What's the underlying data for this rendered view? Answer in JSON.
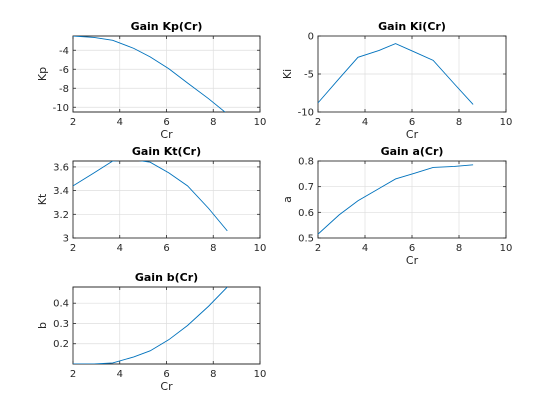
{
  "chart_data": [
    {
      "type": "line",
      "title": "Gain Kp(Cr)",
      "xlabel": "Cr",
      "ylabel": "Kp",
      "xlim": [
        2,
        10
      ],
      "ylim": [
        -10.5,
        -2.5
      ],
      "xticks": [
        2,
        4,
        6,
        8,
        10
      ],
      "yticks": [
        -10,
        -8,
        -6,
        -4
      ],
      "grid": true,
      "color": "#0072bd",
      "series": [
        {
          "x": [
            2,
            2.9,
            3.7,
            4.6,
            5.3,
            6.1,
            6.9,
            7.8,
            8.6
          ],
          "y": [
            -2.5,
            -2.65,
            -2.95,
            -3.8,
            -4.7,
            -5.95,
            -7.45,
            -9.1,
            -10.7
          ]
        }
      ]
    },
    {
      "type": "line",
      "title": "Gain Ki(Cr)",
      "xlabel": "Cr",
      "ylabel": "Ki",
      "xlim": [
        2,
        10
      ],
      "ylim": [
        -10,
        0
      ],
      "xticks": [
        2,
        4,
        6,
        8,
        10
      ],
      "yticks": [
        -10,
        -5,
        0
      ],
      "grid": true,
      "color": "#0072bd",
      "series": [
        {
          "x": [
            2,
            2.9,
            3.7,
            4.6,
            5.3,
            6.1,
            6.9,
            7.8,
            8.6
          ],
          "y": [
            -8.8,
            -5.6,
            -2.8,
            -1.9,
            -1.0,
            -2.1,
            -3.2,
            -6.3,
            -9.0
          ]
        }
      ]
    },
    {
      "type": "line",
      "title": "Gain Kt(Cr)",
      "xlabel": "",
      "ylabel": "Kt",
      "xlim": [
        2,
        10
      ],
      "ylim": [
        3,
        3.65
      ],
      "xticks": [
        2,
        4,
        6,
        8,
        10
      ],
      "yticks": [
        3,
        3.2,
        3.4,
        3.6
      ],
      "grid": true,
      "color": "#0072bd",
      "series": [
        {
          "x": [
            2,
            2.9,
            3.7,
            4.6,
            5.3,
            6.1,
            6.9,
            7.8,
            8.6
          ],
          "y": [
            3.44,
            3.55,
            3.65,
            3.66,
            3.64,
            3.55,
            3.44,
            3.25,
            3.06
          ]
        }
      ]
    },
    {
      "type": "line",
      "title": "Gain a(Cr)",
      "xlabel": "Cr",
      "ylabel": "a",
      "xlim": [
        2,
        10
      ],
      "ylim": [
        0.5,
        0.8
      ],
      "xticks": [
        2,
        4,
        6,
        8,
        10
      ],
      "yticks": [
        0.5,
        0.6,
        0.7,
        0.8
      ],
      "grid": true,
      "color": "#0072bd",
      "series": [
        {
          "x": [
            2,
            2.9,
            3.7,
            4.6,
            5.3,
            6.1,
            6.9,
            7.8,
            8.6
          ],
          "y": [
            0.515,
            0.59,
            0.645,
            0.693,
            0.73,
            0.752,
            0.775,
            0.779,
            0.785
          ]
        }
      ]
    },
    {
      "type": "line",
      "title": "Gain b(Cr)",
      "xlabel": "Cr",
      "ylabel": "b",
      "xlim": [
        2,
        10
      ],
      "ylim": [
        0.1,
        0.48
      ],
      "xticks": [
        2,
        4,
        6,
        8,
        10
      ],
      "yticks": [
        0.2,
        0.3,
        0.4
      ],
      "grid": true,
      "color": "#0072bd",
      "series": [
        {
          "x": [
            2,
            2.9,
            3.7,
            4.6,
            5.3,
            6.1,
            6.9,
            7.8,
            8.6
          ],
          "y": [
            0.1,
            0.1,
            0.105,
            0.135,
            0.165,
            0.22,
            0.29,
            0.385,
            0.48
          ]
        }
      ]
    }
  ]
}
